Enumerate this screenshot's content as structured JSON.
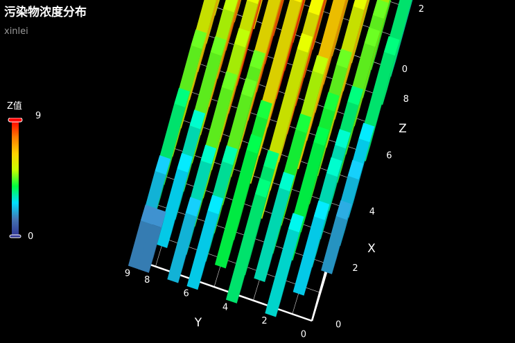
{
  "title": "污染物浓度分布",
  "subtitle": "xinlei",
  "visual_map": {
    "label": "Z值",
    "max_label": "9",
    "min_label": "0",
    "min": 0,
    "max": 9,
    "colors": [
      "#313695",
      "#4575b4",
      "#00e0ff",
      "#00ff40",
      "#c8ff00",
      "#ffd200",
      "#ff7a00",
      "#ff0000"
    ]
  },
  "chart_data": {
    "type": "bar3d",
    "title": "污染物浓度分布",
    "subtitle": "xinlei",
    "xlabel": "X",
    "ylabel": "Y",
    "zlabel": "Z",
    "x_ticks": [
      "0",
      "2",
      "4",
      "6",
      "8"
    ],
    "y_ticks": [
      "0",
      "2",
      "4",
      "6",
      "8",
      "9"
    ],
    "z_ticks": [
      "0",
      "2",
      "4",
      "6",
      "8",
      "9"
    ],
    "xlim": [
      0,
      9
    ],
    "ylim": [
      0,
      9
    ],
    "zlim": [
      0,
      9
    ],
    "grid": true,
    "points": [
      [
        0,
        8.5,
        1.5
      ],
      [
        0,
        7,
        2.2
      ],
      [
        1,
        8,
        2.5
      ],
      [
        1,
        6,
        3.2
      ],
      [
        2,
        8,
        3.0
      ],
      [
        2,
        5,
        4.0
      ],
      [
        0,
        4,
        3.5
      ],
      [
        1,
        3,
        3.0
      ],
      [
        2,
        2,
        3.8
      ],
      [
        3,
        1,
        3.0
      ],
      [
        3,
        8,
        4.5
      ],
      [
        3,
        6,
        4.5
      ],
      [
        4,
        4,
        5.8
      ],
      [
        4,
        7,
        5.5
      ],
      [
        5,
        5,
        6.5
      ],
      [
        4,
        8,
        5.0
      ],
      [
        5,
        7,
        7.5
      ],
      [
        5,
        3,
        6.5
      ],
      [
        6,
        6,
        7.8
      ],
      [
        6,
        4,
        8.2
      ],
      [
        6,
        8,
        7.2
      ],
      [
        7,
        5,
        8.5
      ],
      [
        7,
        7,
        8.8
      ],
      [
        7,
        3,
        7.0
      ],
      [
        5,
        2,
        5.5
      ],
      [
        6,
        2,
        6.0
      ],
      [
        7,
        2,
        7.0
      ],
      [
        8,
        4,
        8.0
      ],
      [
        8,
        6,
        8.3
      ],
      [
        8,
        8,
        8.0
      ],
      [
        8,
        2,
        6.5
      ],
      [
        9,
        5,
        7.0
      ],
      [
        9,
        3,
        6.0
      ],
      [
        9,
        7,
        6.5
      ],
      [
        9,
        1,
        4.5
      ],
      [
        8,
        1,
        4.0
      ],
      [
        7,
        1,
        5.0
      ],
      [
        6,
        1,
        4.5
      ],
      [
        5,
        1,
        4.5
      ],
      [
        4,
        1,
        3.5
      ],
      [
        4,
        2,
        4.5
      ],
      [
        3,
        3,
        5.0
      ],
      [
        3,
        4,
        5.5
      ],
      [
        2,
        7,
        4.5
      ],
      [
        1,
        5,
        3.8
      ],
      [
        6,
        0,
        3.5
      ],
      [
        4,
        0,
        2.5
      ],
      [
        2,
        0,
        1.8
      ],
      [
        9,
        9,
        5.5
      ],
      [
        8,
        9,
        6.0
      ],
      [
        7,
        9,
        6.5
      ],
      [
        6,
        9,
        6.8
      ],
      [
        5,
        9,
        6.0
      ],
      [
        4,
        9,
        5.5
      ],
      [
        3,
        9,
        4.5
      ],
      [
        9,
        0,
        3.0
      ],
      [
        8,
        0,
        3.5
      ],
      [
        3,
        2,
        4.0
      ],
      [
        4,
        5,
        6.0
      ],
      [
        5,
        6,
        7.0
      ],
      [
        6,
        7,
        7.5
      ],
      [
        7,
        6,
        8.0
      ],
      [
        5,
        4,
        6.8
      ],
      [
        6,
        5,
        7.8
      ],
      [
        7,
        4,
        8.0
      ],
      [
        8,
        5,
        8.5
      ],
      [
        8,
        3,
        7.5
      ],
      [
        9,
        4,
        7.0
      ],
      [
        2,
        3,
        4.0
      ],
      [
        2,
        6,
        4.5
      ],
      [
        1,
        7,
        3.0
      ],
      [
        1,
        4,
        3.5
      ],
      [
        0,
        6,
        2.5
      ],
      [
        0,
        2,
        2.8
      ],
      [
        1,
        1,
        2.5
      ],
      [
        2,
        1,
        3.0
      ],
      [
        3,
        0,
        2.2
      ],
      [
        0,
        9,
        1.5
      ],
      [
        1,
        9,
        2.2
      ],
      [
        2,
        9,
        3.5
      ],
      [
        9,
        8,
        6.5
      ],
      [
        9,
        6,
        7.5
      ],
      [
        9,
        2,
        5.5
      ],
      [
        4,
        6,
        6.0
      ],
      [
        3,
        7,
        5.0
      ],
      [
        7,
        8,
        7.5
      ],
      [
        5,
        8,
        6.8
      ],
      [
        6,
        3,
        7.0
      ]
    ]
  }
}
